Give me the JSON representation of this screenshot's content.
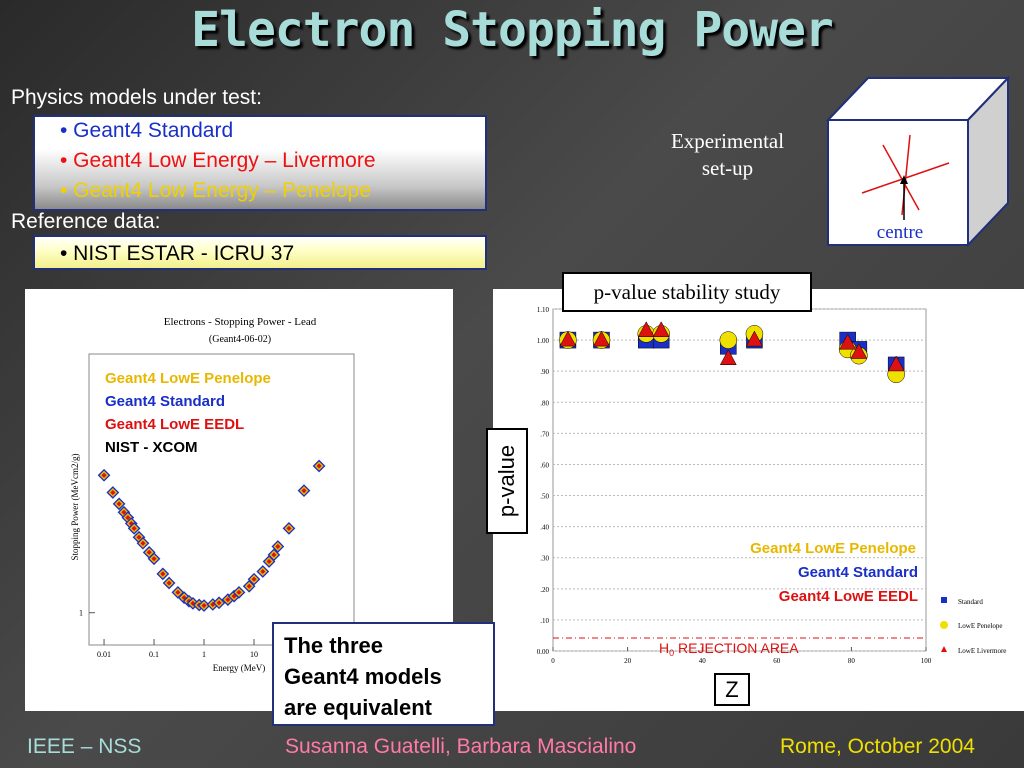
{
  "title": "Electron Stopping Power",
  "physics_models": {
    "heading": "Physics models under test:",
    "items": [
      {
        "label": "• Geant4 Standard",
        "color": "#1a2fc8"
      },
      {
        "label": "• Geant4 Low Energy – Livermore",
        "color": "#ee1111"
      },
      {
        "label": "• Geant4 Low Energy – Penelope",
        "color": "#f0d000"
      }
    ]
  },
  "reference": {
    "heading": "Reference data:",
    "item": "• NIST ESTAR - ICRU 37"
  },
  "experimental_setup": {
    "label_line1": "Experimental",
    "label_line2": "set-up",
    "centre_label": "centre"
  },
  "left_chart": {
    "title": "Electrons - Stopping Power - Lead",
    "subtitle": "(Geant4-06-02)",
    "xlabel": "Energy (MeV)",
    "ylabel": "Stopping Power (MeVcm2/g)",
    "legend": [
      {
        "label": "Geant4 LowE Penelope",
        "color": "#e8b800"
      },
      {
        "label": "Geant4 Standard",
        "color": "#1a2fc8"
      },
      {
        "label": "Geant4 LowE EEDL",
        "color": "#dd1111"
      },
      {
        "label": "NIST - XCOM",
        "color": "#000000"
      }
    ]
  },
  "callout": {
    "line1": "The three",
    "line2": "Geant4 models",
    "line3": "are equivalent"
  },
  "right_chart": {
    "study_label": "p-value stability study",
    "ylabel": "p-value",
    "xlabel": "Z",
    "overlay_legend": [
      {
        "label": "Geant4 LowE Penelope",
        "color": "#e8b800"
      },
      {
        "label": "Geant4 Standard",
        "color": "#1a2fc8"
      },
      {
        "label": "Geant4 LowE EEDL",
        "color": "#dd1111"
      }
    ],
    "rejection_prefix": "H",
    "rejection_sub": "0",
    "rejection_suffix": " REJECTION AREA",
    "small_legend": [
      "Standard",
      "LowE Penelope",
      "LowE Livermore"
    ]
  },
  "footer": {
    "left": "IEEE – NSS",
    "center": "Susanna Guatelli, Barbara Mascialino",
    "right": "Rome, October 2004"
  },
  "chart_data": [
    {
      "type": "scatter",
      "title": "Electrons - Stopping Power - Lead",
      "subtitle": "(Geant4-06-02)",
      "xlabel": "Energy (MeV)",
      "ylabel": "Stopping Power (MeVcm2/g)",
      "x_scale": "log",
      "y_scale": "log",
      "xlim": [
        0.005,
        1000
      ],
      "ylim": [
        0.6,
        60
      ],
      "x_ticks": [
        "0.01",
        "0.1",
        "1",
        "10"
      ],
      "y_ticks": [
        "1"
      ],
      "series": [
        {
          "name": "Geant4 LowE Penelope",
          "x": [
            0.01,
            0.015,
            0.02,
            0.025,
            0.03,
            0.035,
            0.04,
            0.05,
            0.06,
            0.08,
            0.1,
            0.15,
            0.2,
            0.3,
            0.4,
            0.5,
            0.6,
            0.8,
            1,
            1.5,
            2,
            3,
            4,
            5,
            8,
            10,
            15,
            20,
            25,
            30,
            50,
            100,
            200
          ],
          "y": [
            8.8,
            6.7,
            5.6,
            4.9,
            4.5,
            4.1,
            3.8,
            3.3,
            3.0,
            2.6,
            2.35,
            1.85,
            1.6,
            1.38,
            1.27,
            1.2,
            1.16,
            1.13,
            1.12,
            1.14,
            1.17,
            1.23,
            1.3,
            1.38,
            1.52,
            1.7,
            1.92,
            2.25,
            2.5,
            2.85,
            3.8,
            6.9,
            10.2
          ]
        },
        {
          "name": "Geant4 Standard",
          "x": [
            0.01,
            0.015,
            0.02,
            0.025,
            0.03,
            0.035,
            0.04,
            0.05,
            0.06,
            0.08,
            0.1,
            0.15,
            0.2,
            0.3,
            0.4,
            0.5,
            0.6,
            0.8,
            1,
            1.5,
            2,
            3,
            4,
            5,
            8,
            10,
            15,
            20,
            25,
            30,
            50,
            100,
            200
          ],
          "y": [
            8.8,
            6.7,
            5.6,
            4.9,
            4.5,
            4.1,
            3.8,
            3.3,
            3.0,
            2.6,
            2.35,
            1.85,
            1.6,
            1.38,
            1.27,
            1.2,
            1.16,
            1.13,
            1.12,
            1.14,
            1.17,
            1.23,
            1.3,
            1.38,
            1.52,
            1.7,
            1.92,
            2.25,
            2.5,
            2.85,
            3.8,
            6.9,
            10.2
          ]
        },
        {
          "name": "Geant4 LowE EEDL",
          "x": [
            0.01,
            0.015,
            0.02,
            0.025,
            0.03,
            0.035,
            0.04,
            0.05,
            0.06,
            0.08,
            0.1,
            0.15,
            0.2,
            0.3,
            0.4,
            0.5,
            0.6,
            0.8,
            1,
            1.5,
            2,
            3,
            4,
            5,
            8,
            10,
            15,
            20,
            25,
            30,
            50,
            100,
            200
          ],
          "y": [
            8.8,
            6.7,
            5.6,
            4.9,
            4.5,
            4.1,
            3.8,
            3.3,
            3.0,
            2.6,
            2.35,
            1.85,
            1.6,
            1.38,
            1.27,
            1.2,
            1.16,
            1.13,
            1.12,
            1.14,
            1.17,
            1.23,
            1.3,
            1.38,
            1.52,
            1.7,
            1.92,
            2.25,
            2.5,
            2.85,
            3.8,
            6.9,
            10.2
          ]
        },
        {
          "name": "NIST - XCOM",
          "x": [
            0.01,
            0.015,
            0.02,
            0.025,
            0.03,
            0.035,
            0.04,
            0.05,
            0.06,
            0.08,
            0.1,
            0.15,
            0.2,
            0.3,
            0.4,
            0.5,
            0.6,
            0.8,
            1,
            1.5,
            2,
            3,
            4,
            5,
            8,
            10,
            15,
            20,
            25,
            30,
            50,
            100,
            200
          ],
          "y": [
            8.8,
            6.7,
            5.6,
            4.9,
            4.5,
            4.1,
            3.8,
            3.3,
            3.0,
            2.6,
            2.35,
            1.85,
            1.6,
            1.38,
            1.27,
            1.2,
            1.16,
            1.13,
            1.12,
            1.14,
            1.17,
            1.23,
            1.3,
            1.38,
            1.52,
            1.7,
            1.92,
            2.25,
            2.5,
            2.85,
            3.8,
            6.9,
            10.2
          ]
        }
      ]
    },
    {
      "type": "scatter",
      "xlabel": "Z",
      "ylabel": "p-value",
      "xlim": [
        0,
        100
      ],
      "ylim": [
        0,
        1.1
      ],
      "x_ticks": [
        "0",
        "20",
        "40",
        "60",
        "80",
        "100"
      ],
      "y_ticks": [
        "0.00",
        ".10",
        ".20",
        ".30",
        ".40",
        ".50",
        ".60",
        ".70",
        ".80",
        ".90",
        "1.00",
        "1.10"
      ],
      "rejection_threshold": 0.05,
      "series": [
        {
          "name": "Standard",
          "color": "#1a2fc8",
          "marker": "square",
          "x": [
            4,
            13,
            25,
            29,
            47,
            54,
            79,
            82,
            92
          ],
          "y": [
            1.0,
            1.0,
            1.0,
            1.0,
            0.98,
            1.0,
            1.0,
            0.97,
            0.92
          ]
        },
        {
          "name": "LowE Penelope",
          "color": "#f0e000",
          "marker": "circle",
          "x": [
            4,
            13,
            25,
            29,
            47,
            54,
            79,
            82,
            92
          ],
          "y": [
            1.0,
            1.0,
            1.02,
            1.02,
            1.0,
            1.02,
            0.97,
            0.95,
            0.89
          ]
        },
        {
          "name": "LowE Livermore",
          "color": "#dd1111",
          "marker": "triangle",
          "x": [
            4,
            13,
            25,
            29,
            47,
            54,
            79,
            82,
            92
          ],
          "y": [
            1.0,
            1.0,
            1.03,
            1.03,
            0.94,
            1.0,
            0.99,
            0.96,
            0.92
          ]
        }
      ]
    }
  ]
}
